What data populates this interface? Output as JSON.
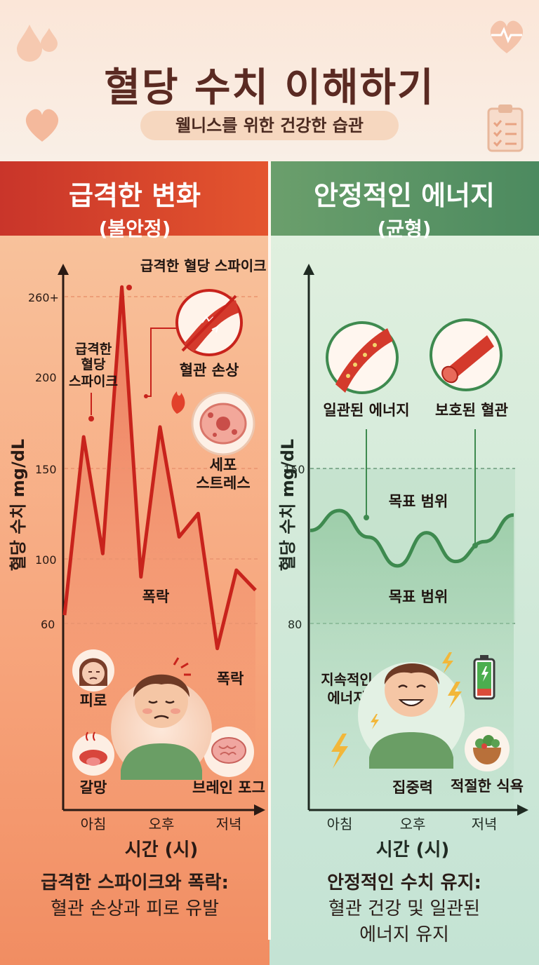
{
  "header": {
    "title": "혈당 수치 이해하기",
    "subtitle": "웰니스를 위한 건강한 습관"
  },
  "left": {
    "heading": "급격한 변화",
    "subheading": "(불안정)",
    "y_axis_label": "혈당 수치 mg/dL",
    "x_axis_label": "시간 (시)",
    "y_ticks": [
      "260+",
      "200",
      "150",
      "100",
      "60"
    ],
    "x_ticks": [
      "아침",
      "오후",
      "저녁"
    ],
    "annotations": {
      "spike_top": "급격한 혈당 스파이크",
      "spike_small_1": "급격한",
      "spike_small_2": "혈당",
      "spike_small_3": "스파이크",
      "vessel_damage": "혈관 손상",
      "cell_stress_1": "세포",
      "cell_stress_2": "스트레스",
      "crash_1": "폭락",
      "crash_2": "폭락",
      "fatigue": "피로",
      "thirst": "갈망",
      "brain_fog": "브레인 포그"
    },
    "summary_1": "급격한 스파이크와 폭락:",
    "summary_2": "혈관 손상과 피로 유발",
    "color": "#c8231c"
  },
  "right": {
    "heading": "안정적인 에너지",
    "subheading": "(균형)",
    "y_axis_label": "혈당 수치 mg/dL",
    "x_axis_label": "시간 (시)",
    "y_ticks": [
      "150",
      "80"
    ],
    "x_ticks": [
      "아침",
      "오후",
      "저녁"
    ],
    "annotations": {
      "consistent_energy": "일관된 에너지",
      "protected_vessel": "보호된 혈관",
      "target_range_1": "목표 범위",
      "target_range_2": "목표 범위",
      "sustained_1": "지속적인",
      "sustained_2": "에너지",
      "focus": "집중력",
      "proper_diet": "적절한 식욕"
    },
    "summary_1": "안정적인 수치 유지:",
    "summary_2": "혈관 건강 및 일관된",
    "summary_3": "에너지 유지",
    "color": "#3e8a4f"
  },
  "chart_data": [
    {
      "type": "line",
      "x_ticks": [
        "아침",
        "오후",
        "저녁"
      ],
      "ylabel": "혈당 수치 mg/dL",
      "xlabel": "시간 (시)",
      "y_ticks": [
        "260+",
        "200",
        "150",
        "100",
        "60"
      ],
      "series": [
        {
          "values": [
            65,
            172,
            102,
            262,
            88,
            178,
            112,
            126,
            45,
            92,
            80
          ]
        }
      ]
    },
    {
      "type": "line",
      "x_ticks": [
        "아침",
        "오후",
        "저녁"
      ],
      "ylabel": "혈당 수치 mg/dL",
      "xlabel": "시간 (시)",
      "y_ticks": [
        "150",
        "80"
      ],
      "series": [
        {
          "values": [
            122,
            131,
            119,
            106,
            121,
            108,
            117,
            129
          ]
        }
      ]
    }
  ]
}
